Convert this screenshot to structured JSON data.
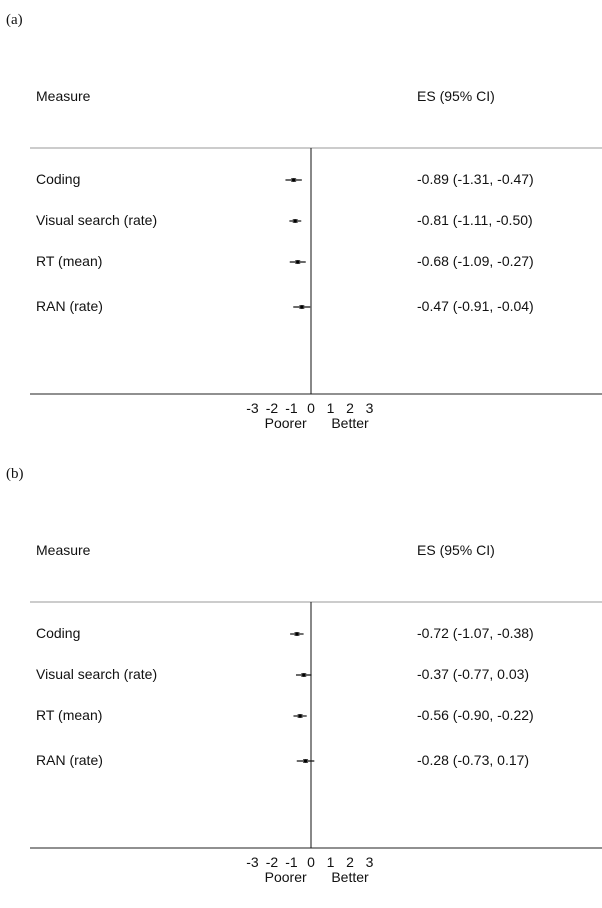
{
  "chart_data": [
    {
      "type": "forest",
      "panel_label": "(a)",
      "header": {
        "measure": "Measure",
        "es": "ES (95% CI)"
      },
      "rows": [
        {
          "label": "Coding",
          "es": -0.89,
          "lower": -1.31,
          "upper": -0.47,
          "text": "-0.89 (-1.31, -0.47)"
        },
        {
          "label": "Visual search (rate)",
          "es": -0.81,
          "lower": -1.11,
          "upper": -0.5,
          "text": "-0.81 (-1.11, -0.50)"
        },
        {
          "label": "RT (mean)",
          "es": -0.68,
          "lower": -1.09,
          "upper": -0.27,
          "text": "-0.68 (-1.09, -0.27)"
        },
        {
          "label": "RAN (rate)",
          "es": -0.47,
          "lower": -0.91,
          "upper": -0.04,
          "text": "-0.47 (-0.91, -0.04)"
        }
      ],
      "xticks": [
        "-3",
        "-2",
        "-1",
        "0",
        "1",
        "2",
        "3"
      ],
      "xlim": [
        -3,
        3
      ],
      "axis_left_label": "Poorer",
      "axis_right_label": "Better"
    },
    {
      "type": "forest",
      "panel_label": "(b)",
      "header": {
        "measure": "Measure",
        "es": "ES (95% CI)"
      },
      "rows": [
        {
          "label": "Coding",
          "es": -0.72,
          "lower": -1.07,
          "upper": -0.38,
          "text": "-0.72 (-1.07, -0.38)"
        },
        {
          "label": "Visual search (rate)",
          "es": -0.37,
          "lower": -0.77,
          "upper": 0.03,
          "text": "-0.37 (-0.77, 0.03)"
        },
        {
          "label": "RT (mean)",
          "es": -0.56,
          "lower": -0.9,
          "upper": -0.22,
          "text": "-0.56 (-0.90, -0.22)"
        },
        {
          "label": "RAN (rate)",
          "es": -0.28,
          "lower": -0.73,
          "upper": 0.17,
          "text": "-0.28 (-0.73, 0.17)"
        }
      ],
      "xticks": [
        "-3",
        "-2",
        "-1",
        "0",
        "1",
        "2",
        "3"
      ],
      "xlim": [
        -3,
        3
      ],
      "axis_left_label": "Poorer",
      "axis_right_label": "Better"
    }
  ]
}
